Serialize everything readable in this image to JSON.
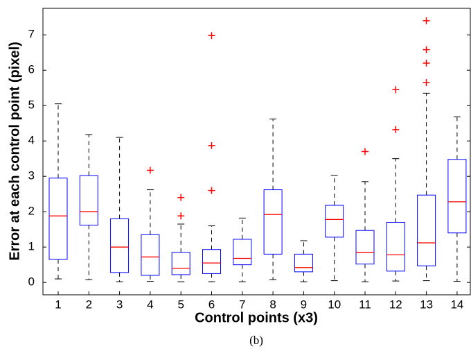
{
  "chart_data": {
    "type": "box",
    "x_label": "Control points (x3)",
    "y_label": "Error at each control point (pixel)",
    "caption": "(b)",
    "categories": [
      "1",
      "2",
      "3",
      "4",
      "5",
      "6",
      "7",
      "8",
      "9",
      "10",
      "11",
      "12",
      "13",
      "14"
    ],
    "box_color": "#0000ff",
    "median_color": "#ff0000",
    "whisker_color": "#000000",
    "outlier_color": "#ff0000",
    "ylim": [
      -0.35,
      7.75
    ],
    "yticks": [
      0,
      1,
      2,
      3,
      4,
      5,
      6,
      7
    ],
    "boxes": [
      {
        "whisker_low": 0.1,
        "q1": 0.65,
        "median": 1.88,
        "q3": 2.95,
        "whisker_high": 5.05,
        "outliers": []
      },
      {
        "whisker_low": 0.08,
        "q1": 1.62,
        "median": 2.0,
        "q3": 3.02,
        "whisker_high": 4.18,
        "outliers": []
      },
      {
        "whisker_low": 0.02,
        "q1": 0.28,
        "median": 1.0,
        "q3": 1.8,
        "whisker_high": 4.1,
        "outliers": []
      },
      {
        "whisker_low": 0.03,
        "q1": 0.2,
        "median": 0.72,
        "q3": 1.35,
        "whisker_high": 2.62,
        "outliers": [
          3.17
        ]
      },
      {
        "whisker_low": 0.02,
        "q1": 0.22,
        "median": 0.4,
        "q3": 0.85,
        "whisker_high": 1.65,
        "outliers": [
          1.88,
          2.4
        ]
      },
      {
        "whisker_low": 0.02,
        "q1": 0.25,
        "median": 0.55,
        "q3": 0.93,
        "whisker_high": 1.6,
        "outliers": [
          2.6,
          3.87,
          6.98
        ]
      },
      {
        "whisker_low": 0.02,
        "q1": 0.5,
        "median": 0.68,
        "q3": 1.22,
        "whisker_high": 1.82,
        "outliers": []
      },
      {
        "whisker_low": 0.08,
        "q1": 0.8,
        "median": 1.92,
        "q3": 2.62,
        "whisker_high": 4.62,
        "outliers": []
      },
      {
        "whisker_low": 0.02,
        "q1": 0.3,
        "median": 0.42,
        "q3": 0.8,
        "whisker_high": 1.18,
        "outliers": []
      },
      {
        "whisker_low": 0.05,
        "q1": 1.28,
        "median": 1.78,
        "q3": 2.18,
        "whisker_high": 3.03,
        "outliers": []
      },
      {
        "whisker_low": 0.02,
        "q1": 0.52,
        "median": 0.85,
        "q3": 1.47,
        "whisker_high": 2.85,
        "outliers": [
          3.7
        ]
      },
      {
        "whisker_low": 0.04,
        "q1": 0.32,
        "median": 0.78,
        "q3": 1.7,
        "whisker_high": 3.5,
        "outliers": [
          4.32,
          5.45
        ]
      },
      {
        "whisker_low": 0.05,
        "q1": 0.47,
        "median": 1.12,
        "q3": 2.47,
        "whisker_high": 5.35,
        "outliers": [
          5.65,
          6.2,
          6.58,
          7.4
        ]
      },
      {
        "whisker_low": 0.03,
        "q1": 1.4,
        "median": 2.28,
        "q3": 3.48,
        "whisker_high": 4.68,
        "outliers": []
      }
    ]
  }
}
